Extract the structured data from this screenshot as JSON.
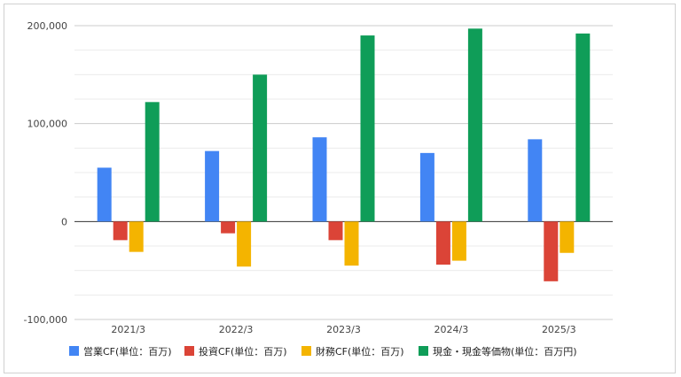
{
  "chart_data": {
    "type": "bar",
    "title": "",
    "xlabel": "",
    "ylabel": "",
    "categories": [
      "2021/3",
      "2022/3",
      "2023/3",
      "2024/3",
      "2025/3"
    ],
    "ylim": [
      -100000,
      200000
    ],
    "y_ticks": [
      {
        "value": 200000,
        "label": "200,000"
      },
      {
        "value": 100000,
        "label": "100,000"
      },
      {
        "value": 0,
        "label": "0"
      },
      {
        "value": -100000,
        "label": "-100,000"
      }
    ],
    "grid": true,
    "minor_grid_step": 25000,
    "legend_position": "bottom",
    "series": [
      {
        "name": "営業CF(単位：百万)",
        "color": "#4285f4",
        "values": [
          55000,
          72000,
          86000,
          70000,
          84000
        ]
      },
      {
        "name": "投資CF(単位：百万)",
        "color": "#db4437",
        "values": [
          -19000,
          -12000,
          -19000,
          -44000,
          -61000
        ]
      },
      {
        "name": "財務CF(単位：百万)",
        "color": "#f4b400",
        "values": [
          -31000,
          -46000,
          -45000,
          -40000,
          -32000
        ]
      },
      {
        "name": "現金・現金等価物(単位：百万円)",
        "color": "#0f9d58",
        "values": [
          122000,
          150000,
          190000,
          197000,
          192000
        ]
      }
    ]
  }
}
